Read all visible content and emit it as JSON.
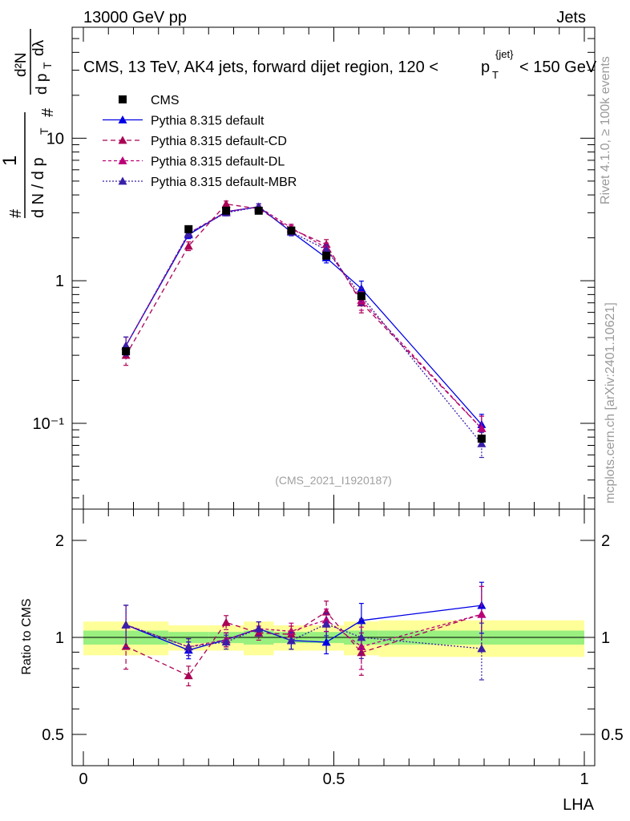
{
  "header": {
    "left": "13000 GeV pp",
    "right": "Jets",
    "title": "CMS, 13 TeV, AK4 jets, forward dijet region, 120 <",
    "title_pt": "p",
    "title_sub": "T",
    "title_sup": "{jet}",
    "title_end": "< 150 GeV"
  },
  "side_labels": {
    "rivet": "Rivet 4.1.0, ≥ 100k events",
    "mcplots": "mcplots.cern.ch [arXiv:2401.10621]"
  },
  "watermark": "(CMS_2021_I1920187)",
  "ylabel_top": {
    "hash1": "#",
    "one": "1",
    "denom": "d N / d p",
    "denom_sub": "T",
    "hash2": "#",
    "d2n": "d²N",
    "dpt": "d p",
    "dpt_sub": "T",
    "dlambda": "dλ"
  },
  "ylabel_bottom": "Ratio to CMS",
  "xlabel": "LHA",
  "tick_labels": {
    "main_y": [
      "10⁻¹",
      "1",
      "10"
    ],
    "ratio_y": [
      "0.5",
      "1",
      "2"
    ],
    "x": [
      "0",
      "0.5",
      "1"
    ]
  },
  "legend": [
    {
      "label": "CMS"
    },
    {
      "label": "Pythia 8.315 default"
    },
    {
      "label": "Pythia 8.315 default-CD"
    },
    {
      "label": "Pythia 8.315 default-DL"
    },
    {
      "label": "Pythia 8.315 default-MBR"
    }
  ],
  "chart_data": {
    "type": "scatter",
    "xlabel": "LHA",
    "xlim": [
      0,
      1
    ],
    "ylim_main": [
      0.025,
      60
    ],
    "yscale_main": "log",
    "ylim_ratio": [
      0.4,
      2.5
    ],
    "yscale_ratio": "log",
    "x": [
      0.085,
      0.21,
      0.285,
      0.35,
      0.415,
      0.485,
      0.555,
      0.795
    ],
    "data": {
      "name": "CMS",
      "color": "#000000",
      "values": [
        0.32,
        2.3,
        3.1,
        3.1,
        2.25,
        1.5,
        0.78,
        0.078
      ],
      "band_edges": [
        0.0,
        0.17,
        0.25,
        0.32,
        0.38,
        0.45,
        0.52,
        0.59,
        1.0
      ],
      "band_stat_rel": [
        0.05,
        0.04,
        0.04,
        0.05,
        0.04,
        0.04,
        0.05,
        0.05
      ],
      "band_total_rel": [
        0.12,
        0.09,
        0.09,
        0.12,
        0.09,
        0.09,
        0.12,
        0.13
      ]
    },
    "series": [
      {
        "name": "Pythia 8.315 default",
        "color": "#0000e6",
        "dash": "solid",
        "values": [
          0.35,
          2.1,
          3.05,
          3.3,
          2.2,
          1.45,
          0.88,
          0.098
        ],
        "errors_rel": [
          0.15,
          0.06,
          0.05,
          0.05,
          0.06,
          0.08,
          0.13,
          0.18
        ]
      },
      {
        "name": "Pythia 8.315 default-CD",
        "color": "#aa0055",
        "dash": "6,4",
        "values": [
          0.3,
          1.75,
          3.45,
          3.2,
          2.3,
          1.8,
          0.7,
          0.092
        ],
        "errors_rel": [
          0.15,
          0.07,
          0.05,
          0.05,
          0.06,
          0.08,
          0.15,
          0.22
        ]
      },
      {
        "name": "Pythia 8.315 default-DL",
        "color": "#bb0077",
        "dash": "4,3",
        "values": [
          0.35,
          2.15,
          3.05,
          3.3,
          2.35,
          1.7,
          0.73,
          0.092
        ],
        "errors_rel": [
          0.15,
          0.06,
          0.05,
          0.05,
          0.06,
          0.08,
          0.15,
          0.22
        ]
      },
      {
        "name": "Pythia 8.315 default-MBR",
        "color": "#3a1fa8",
        "dash": "2,2",
        "values": [
          0.35,
          2.15,
          3.0,
          3.3,
          2.2,
          1.65,
          0.78,
          0.072
        ],
        "errors_rel": [
          0.15,
          0.06,
          0.05,
          0.05,
          0.06,
          0.08,
          0.14,
          0.2
        ]
      }
    ]
  }
}
